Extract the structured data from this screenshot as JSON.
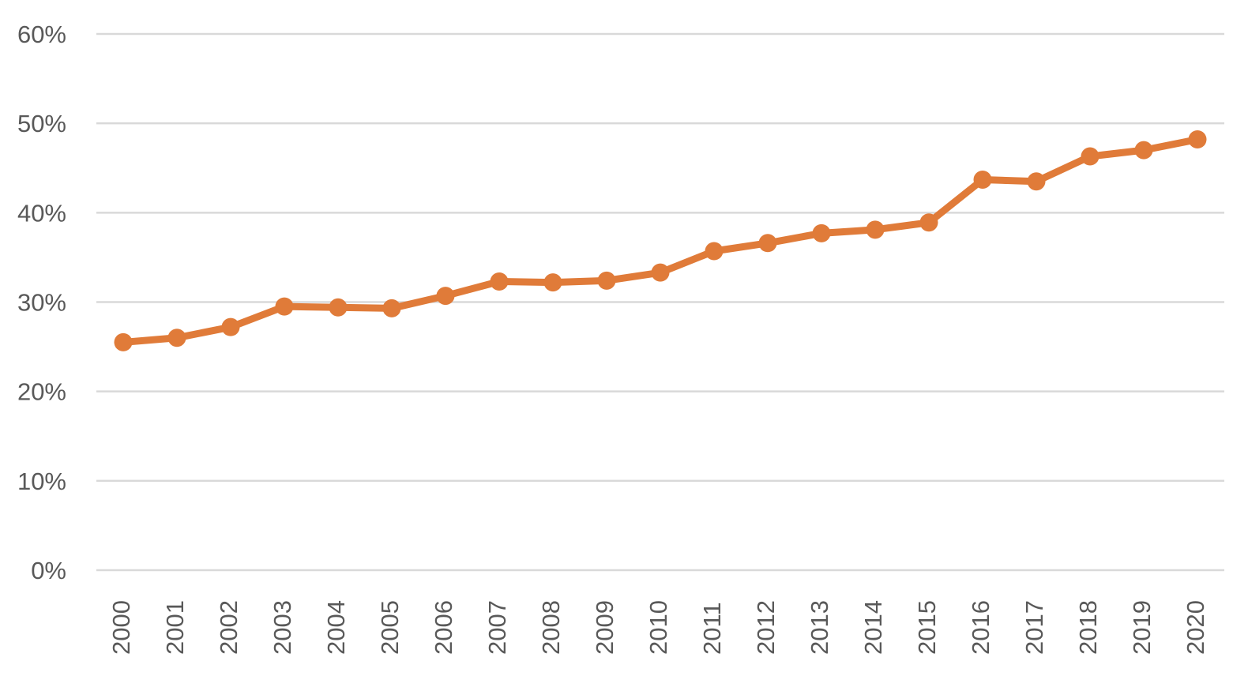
{
  "chart_data": {
    "type": "line",
    "title": "",
    "xlabel": "",
    "ylabel": "",
    "categories": [
      "2000",
      "2001",
      "2002",
      "2003",
      "2004",
      "2005",
      "2006",
      "2007",
      "2008",
      "2009",
      "2010",
      "2011",
      "2012",
      "2013",
      "2014",
      "2015",
      "2016",
      "2017",
      "2018",
      "2019",
      "2020"
    ],
    "series": [
      {
        "values": [
          0.255,
          0.26,
          0.272,
          0.295,
          0.294,
          0.293,
          0.307,
          0.323,
          0.322,
          0.324,
          0.333,
          0.357,
          0.366,
          0.377,
          0.381,
          0.389,
          0.437,
          0.435,
          0.463,
          0.47,
          0.482
        ],
        "color": "#e07b39"
      }
    ],
    "ylim": [
      0,
      0.6
    ],
    "y_ticks": [
      "0%",
      "10%",
      "20%",
      "30%",
      "40%",
      "50%",
      "60%"
    ],
    "y_tick_values": [
      0,
      0.1,
      0.2,
      0.3,
      0.4,
      0.5,
      0.6
    ],
    "x_tick_rotation": "vertical",
    "grid": "horizontal",
    "legend": "none",
    "gridline_color": "#d9d9d9",
    "label_color": "#595959"
  }
}
